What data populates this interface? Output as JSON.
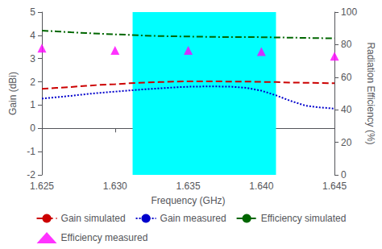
{
  "chart_data": {
    "type": "line",
    "x": [
      1.625,
      1.626,
      1.627,
      1.628,
      1.629,
      1.63,
      1.631,
      1.632,
      1.633,
      1.634,
      1.635,
      1.636,
      1.637,
      1.638,
      1.639,
      1.64,
      1.641,
      1.642,
      1.643,
      1.644,
      1.645
    ],
    "series": [
      {
        "name": "Gain simulated",
        "color": "#cc0000",
        "line_style": "dashed",
        "values": [
          1.7,
          1.74,
          1.78,
          1.83,
          1.87,
          1.9,
          1.94,
          1.97,
          1.99,
          2.01,
          2.02,
          2.02,
          2.02,
          2.01,
          2.01,
          2.0,
          1.99,
          1.97,
          1.96,
          1.95,
          1.94
        ]
      },
      {
        "name": "Gain measured",
        "color": "#0000cc",
        "line_style": "dotted",
        "values": [
          1.28,
          1.34,
          1.4,
          1.47,
          1.53,
          1.58,
          1.63,
          1.68,
          1.72,
          1.76,
          1.79,
          1.8,
          1.8,
          1.79,
          1.74,
          1.62,
          1.42,
          1.18,
          0.98,
          0.9,
          0.85
        ]
      },
      {
        "name": "Efficiency simulated",
        "color": "#006600",
        "line_style": "dashdot",
        "values": [
          4.2,
          4.17,
          4.13,
          4.1,
          4.07,
          4.04,
          4.02,
          3.99,
          3.97,
          3.96,
          3.95,
          3.94,
          3.93,
          3.93,
          3.93,
          3.92,
          3.91,
          3.9,
          3.89,
          3.88,
          3.87
        ]
      },
      {
        "name": "Efficiency measured",
        "color": "#ff00ff",
        "type": "scatter",
        "marker": "triangle",
        "x": [
          1.625,
          1.63,
          1.635,
          1.64,
          1.645
        ],
        "values": [
          3.45,
          3.35,
          3.35,
          3.3,
          3.1
        ]
      }
    ],
    "shaded_region": {
      "x": [
        1.6312,
        1.641
      ],
      "color": "#00ffff"
    },
    "xlabel": "Frequency (GHz)",
    "ylabel": "Gain (dBi)",
    "y2label": "Radiation Efficiency (%)",
    "xlim": [
      1.625,
      1.645
    ],
    "xticks": [
      1.625,
      {
        "value": 1.63,
        "label": "1.630"
      },
      1.635,
      {
        "value": 1.64,
        "label": "1.640"
      },
      1.645
    ],
    "ylim": [
      -2,
      5
    ],
    "yticks": [
      -2,
      -1,
      0,
      1,
      2,
      3,
      4,
      5
    ],
    "y2lim": [
      0,
      100
    ],
    "y2ticks": [
      0,
      20,
      40,
      60,
      80,
      100
    ],
    "grid": false,
    "legend": "bottom"
  }
}
